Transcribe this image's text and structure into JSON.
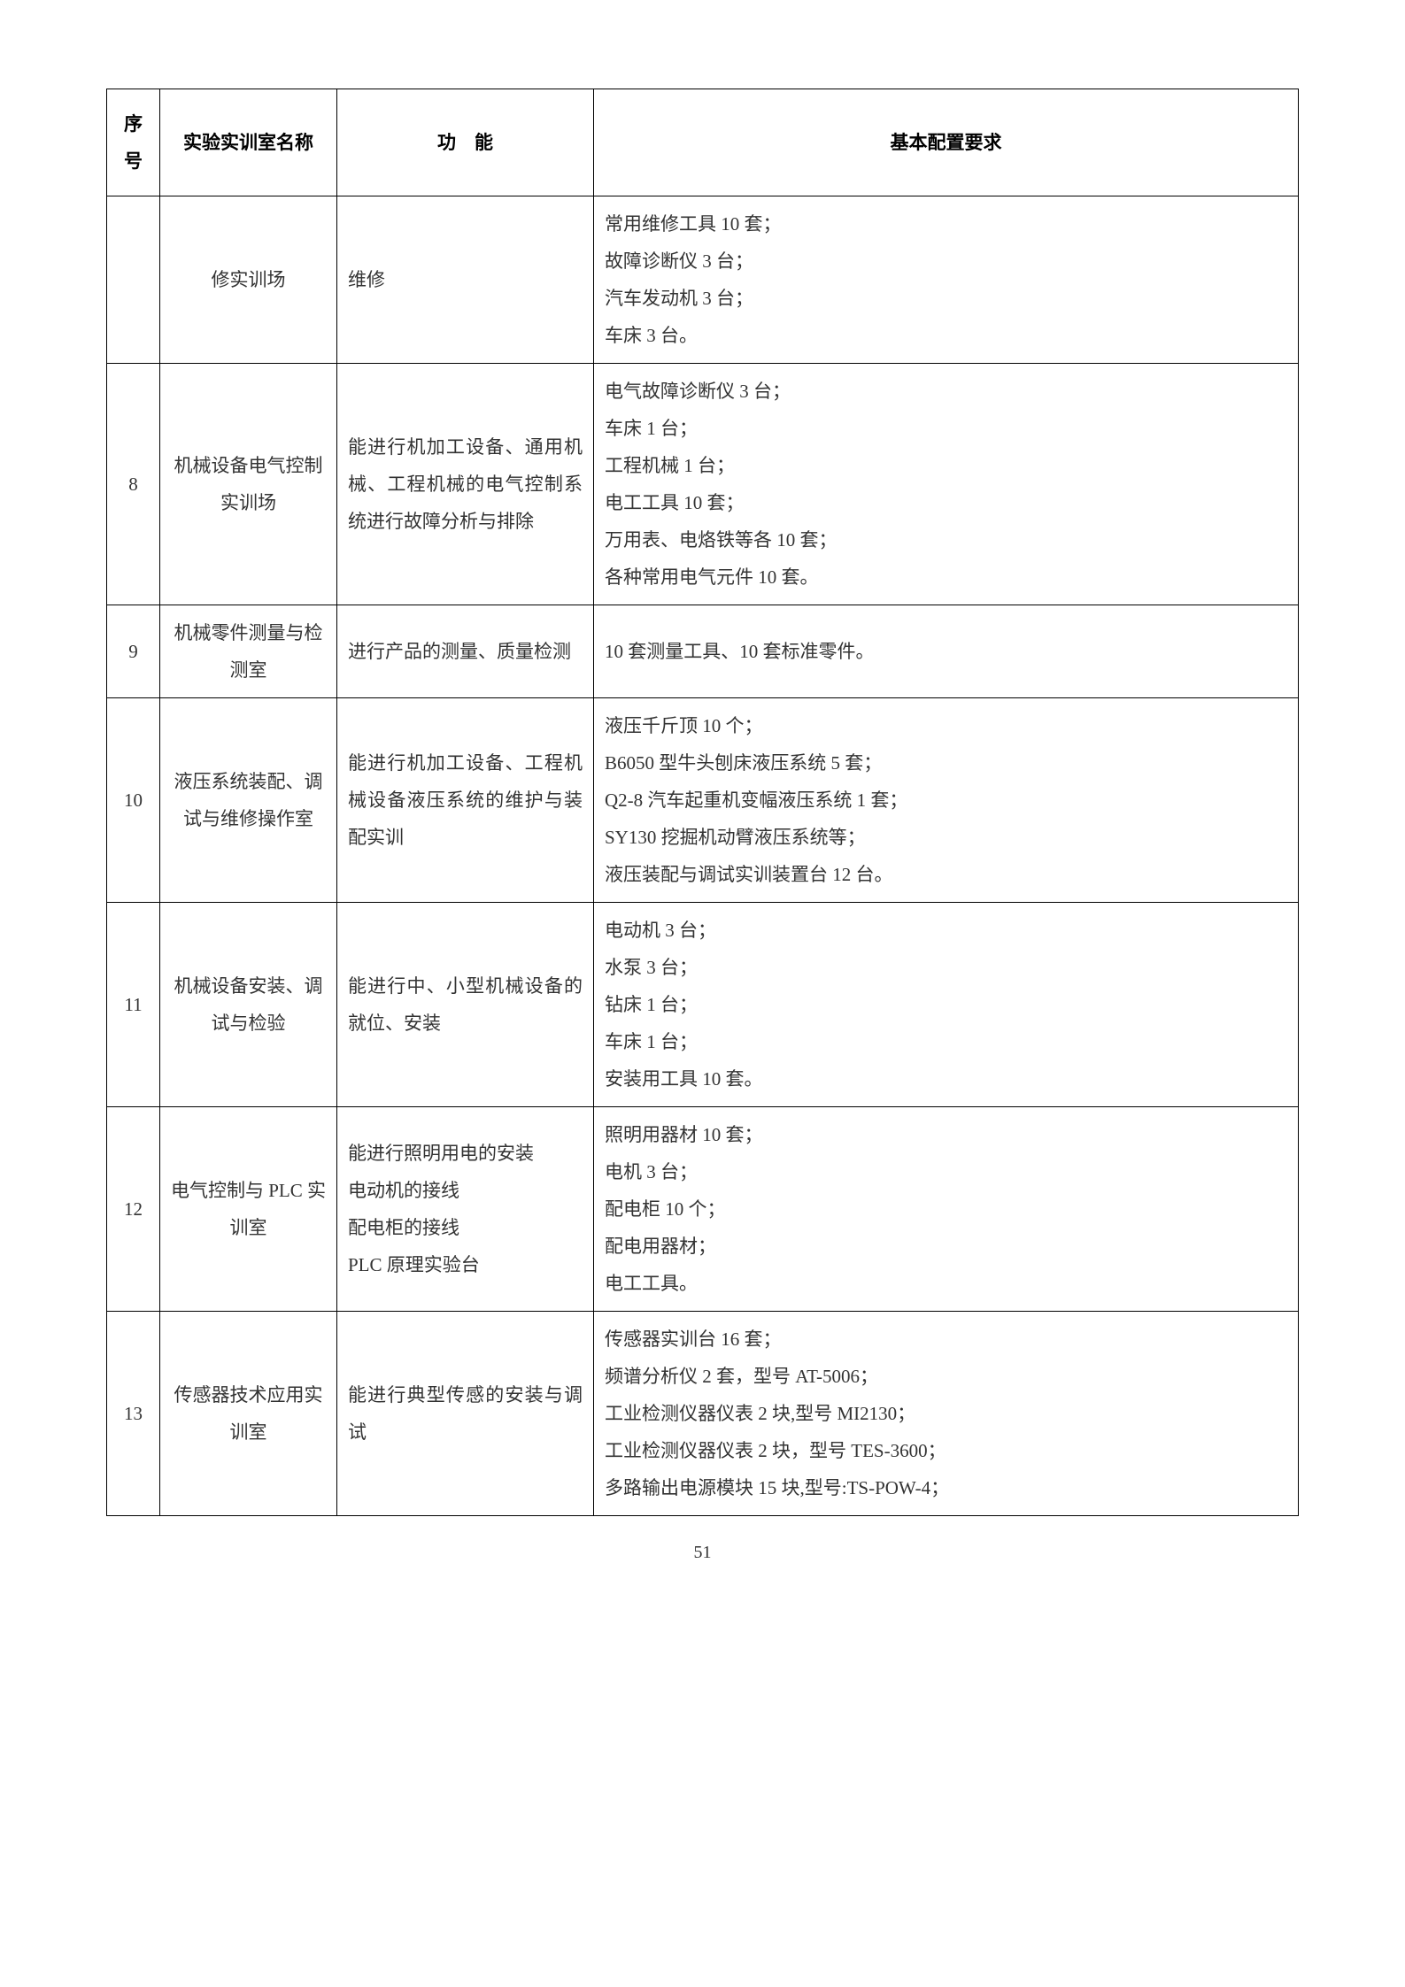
{
  "table": {
    "headers": {
      "seq": "序号",
      "name": "实验实训室名称",
      "func": "功　能",
      "req": "基本配置要求"
    },
    "column_widths": {
      "seq": 60,
      "name": 200,
      "func": 290,
      "req": "auto"
    },
    "border_color": "#000000",
    "text_color": "#333333",
    "font_size": 21,
    "line_height": 2.0,
    "rows": [
      {
        "seq": "",
        "name": "修实训场",
        "func": "维修",
        "req": "常用维修工具 10 套；\n故障诊断仪 3 台；\n汽车发动机 3 台；\n车床 3 台。"
      },
      {
        "seq": "8",
        "name": "机械设备电气控制实训场",
        "func": "能进行机加工设备、通用机械、工程机械的电气控制系统进行故障分析与排除",
        "req": "电气故障诊断仪 3 台；\n车床 1 台；\n工程机械 1 台；\n电工工具 10 套；\n万用表、电烙铁等各 10 套；\n各种常用电气元件 10 套。"
      },
      {
        "seq": "9",
        "name": "机械零件测量与检测室",
        "func": "进行产品的测量、质量检测",
        "req": "10 套测量工具、10 套标准零件。"
      },
      {
        "seq": "10",
        "name": "液压系统装配、调试与维修操作室",
        "func": "能进行机加工设备、工程机械设备液压系统的维护与装配实训",
        "req": "液压千斤顶 10 个；\nB6050 型牛头刨床液压系统 5 套；\nQ2-8 汽车起重机变幅液压系统 1 套；\nSY130 挖掘机动臂液压系统等；\n液压装配与调试实训装置台 12 台。"
      },
      {
        "seq": "11",
        "name": "机械设备安装、调试与检验",
        "func": "能进行中、小型机械设备的就位、安装",
        "req": "电动机 3 台；\n水泵 3 台；\n钻床 1 台；\n车床 1 台；\n安装用工具 10 套。"
      },
      {
        "seq": "12",
        "name": "电气控制与 PLC 实训室",
        "func": "能进行照明用电的安装\n电动机的接线\n配电柜的接线\nPLC 原理实验台",
        "req": "照明用器材 10 套；\n电机 3 台；\n配电柜 10 个；\n配电用器材；\n电工工具。"
      },
      {
        "seq": "13",
        "name": "传感器技术应用实训室",
        "func": "能进行典型传感的安装与调试",
        "req": "传感器实训台 16 套；\n频谱分析仪 2 套，型号 AT-5006；\n工业检测仪器仪表 2 块,型号 MI2130；\n工业检测仪器仪表 2 块，型号 TES-3600；\n多路输出电源模块 15 块,型号:TS-POW-4；"
      }
    ]
  },
  "page_number": "51",
  "background_color": "#ffffff"
}
